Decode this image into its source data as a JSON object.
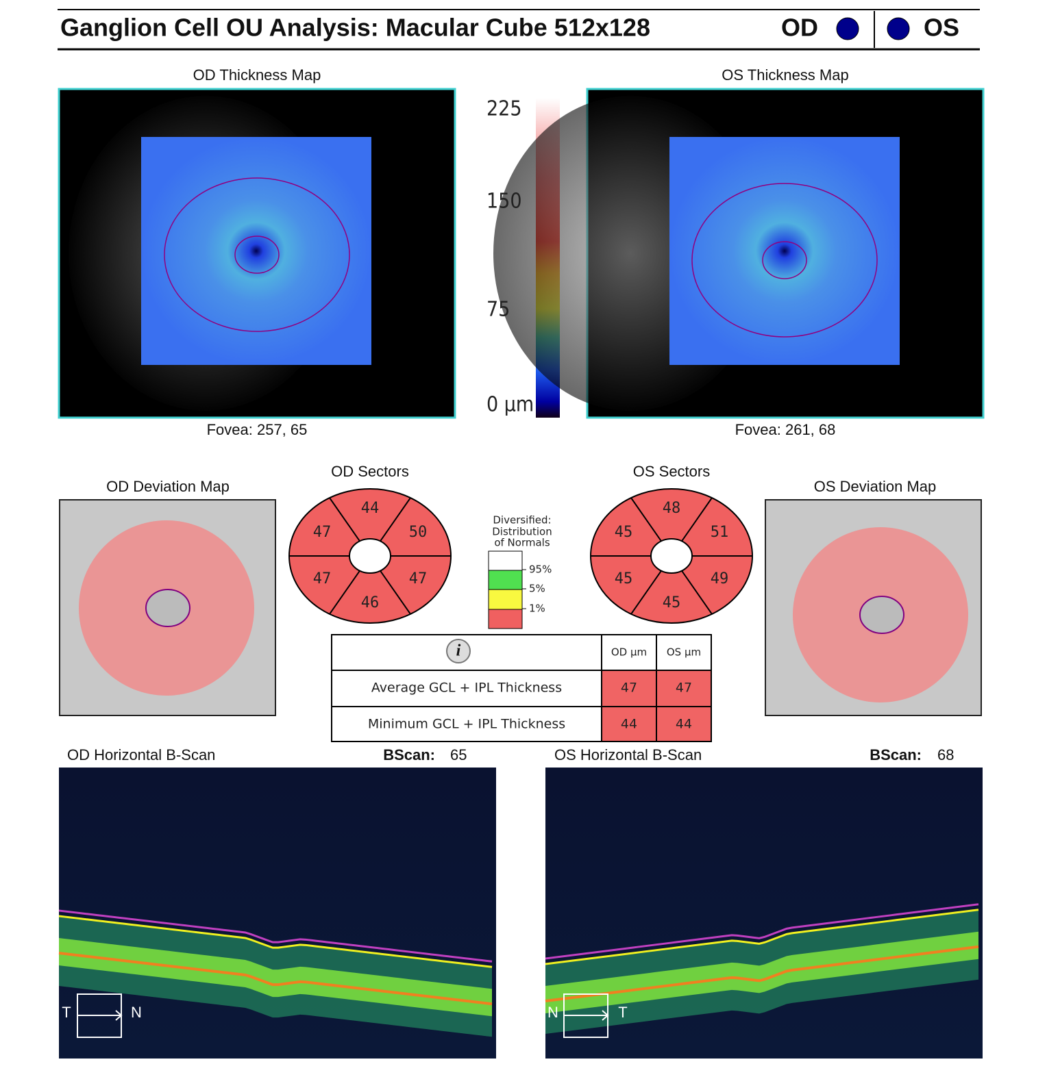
{
  "header": {
    "title": "Ganglion Cell OU Analysis: Macular Cube 512x128",
    "od": "OD",
    "os": "OS"
  },
  "thickness_maps": {
    "od": {
      "title": "OD Thickness Map",
      "fovea": "Fovea: 257, 65"
    },
    "os": {
      "title": "OS Thickness Map",
      "fovea": "Fovea: 261, 68"
    },
    "color_scale": [
      "225",
      "150",
      "75",
      "0 µm"
    ]
  },
  "deviation_maps": {
    "od": {
      "title": "OD Deviation Map"
    },
    "os": {
      "title": "OS Deviation Map"
    }
  },
  "sectors": {
    "od": {
      "title": "OD Sectors",
      "values": [
        44,
        50,
        47,
        46,
        47,
        47
      ]
    },
    "os": {
      "title": "OS Sectors",
      "values": [
        48,
        51,
        49,
        45,
        45,
        45
      ]
    }
  },
  "legend": {
    "title": [
      "Diversified:",
      "Distribution",
      "of Normals"
    ],
    "labels": [
      "95%",
      "5%",
      "1%"
    ]
  },
  "table": {
    "headers": [
      "OD µm",
      "OS µm"
    ],
    "rows": [
      [
        "Average GCL + IPL Thickness",
        47,
        47
      ],
      [
        "Minimum GCL + IPL Thickness",
        44,
        44
      ]
    ]
  },
  "bscans": {
    "od": {
      "title": "OD Horizontal B-Scan",
      "bscan_label": "BScan:",
      "bscan": 65,
      "left": "T",
      "right": "N"
    },
    "os": {
      "title": "OS Horizontal B-Scan",
      "bscan_label": "BScan:",
      "bscan": 68,
      "left": "N",
      "right": "T"
    }
  }
}
